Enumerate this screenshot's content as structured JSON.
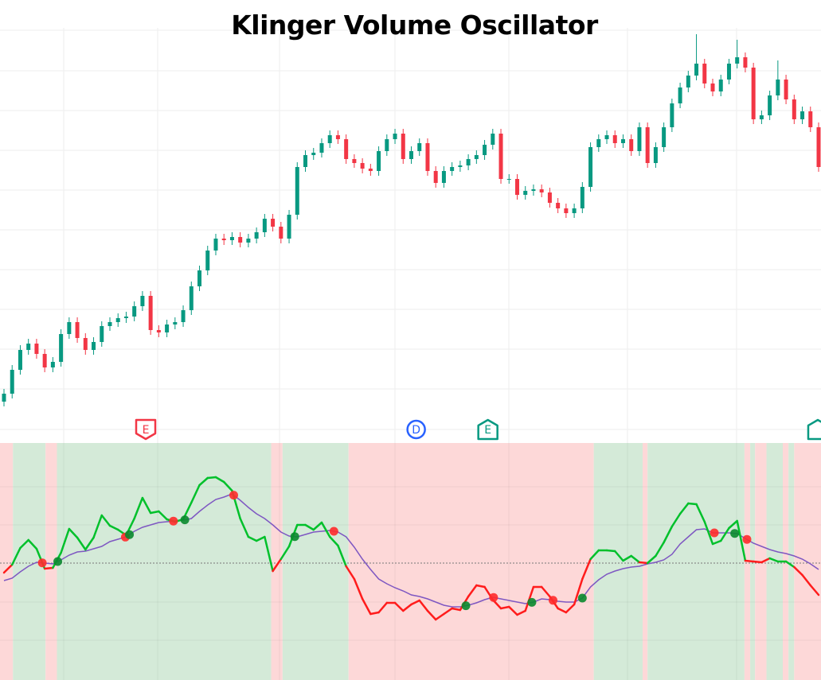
{
  "chart_data": [
    {
      "type": "candlestick",
      "title": "Klinger Volume Oscillator",
      "grid": true,
      "colors": {
        "up": "#089981",
        "down": "#f23645"
      },
      "open": [
        15,
        25,
        55,
        80,
        88,
        75,
        58,
        65,
        100,
        115,
        95,
        80,
        90,
        110,
        115,
        120,
        122,
        135,
        148,
        105,
        102,
        112,
        115,
        130,
        160,
        180,
        205,
        220,
        218,
        222,
        215,
        220,
        228,
        245,
        235,
        220,
        250,
        310,
        325,
        328,
        340,
        350,
        345,
        320,
        315,
        308,
        305,
        330,
        345,
        352,
        320,
        330,
        340,
        305,
        290,
        305,
        310,
        312,
        320,
        325,
        338,
        352,
        295,
        295,
        275,
        280,
        282,
        278,
        265,
        258,
        252,
        258,
        285,
        335,
        345,
        350,
        340,
        345,
        330,
        360,
        315,
        335,
        360,
        390,
        410,
        425,
        440,
        415,
        405,
        420,
        440,
        448,
        435,
        370,
        375,
        400,
        420,
        395,
        370,
        380,
        360
      ],
      "high": [
        31,
        61,
        86,
        94,
        94,
        81,
        71,
        106,
        121,
        121,
        101,
        96,
        116,
        121,
        126,
        128,
        141,
        154,
        154,
        111,
        118,
        121,
        136,
        166,
        186,
        211,
        226,
        226,
        228,
        228,
        226,
        234,
        251,
        251,
        241,
        256,
        316,
        331,
        334,
        346,
        356,
        356,
        351,
        326,
        321,
        314,
        336,
        351,
        358,
        358,
        336,
        346,
        346,
        311,
        311,
        316,
        318,
        326,
        331,
        344,
        358,
        358,
        301,
        301,
        286,
        288,
        288,
        284,
        271,
        264,
        264,
        291,
        341,
        351,
        356,
        356,
        351,
        351,
        366,
        366,
        341,
        366,
        396,
        416,
        431,
        477,
        446,
        421,
        426,
        446,
        470,
        454,
        441,
        381,
        406,
        444,
        426,
        401,
        386,
        386,
        366
      ],
      "low": [
        9,
        19,
        49,
        74,
        69,
        52,
        52,
        59,
        94,
        89,
        74,
        74,
        84,
        104,
        109,
        114,
        116,
        129,
        99,
        96,
        96,
        106,
        109,
        124,
        154,
        174,
        199,
        212,
        212,
        209,
        209,
        214,
        222,
        229,
        214,
        214,
        244,
        304,
        319,
        322,
        334,
        339,
        314,
        309,
        302,
        299,
        299,
        324,
        339,
        314,
        314,
        324,
        299,
        284,
        284,
        299,
        304,
        306,
        314,
        319,
        332,
        289,
        289,
        269,
        269,
        274,
        272,
        259,
        252,
        246,
        246,
        252,
        279,
        329,
        339,
        334,
        334,
        324,
        324,
        309,
        309,
        329,
        354,
        384,
        404,
        419,
        409,
        399,
        399,
        414,
        434,
        429,
        364,
        364,
        369,
        394,
        389,
        364,
        364,
        354,
        304
      ],
      "close": [
        25,
        55,
        80,
        88,
        75,
        58,
        65,
        100,
        115,
        95,
        80,
        90,
        110,
        115,
        120,
        122,
        135,
        148,
        105,
        102,
        112,
        115,
        130,
        160,
        180,
        205,
        220,
        218,
        222,
        215,
        220,
        228,
        245,
        235,
        220,
        250,
        310,
        325,
        328,
        340,
        350,
        345,
        320,
        315,
        308,
        305,
        330,
        345,
        352,
        320,
        330,
        340,
        305,
        290,
        305,
        310,
        312,
        320,
        325,
        338,
        352,
        295,
        295,
        275,
        280,
        282,
        278,
        265,
        258,
        252,
        258,
        285,
        335,
        345,
        350,
        340,
        345,
        330,
        360,
        315,
        335,
        360,
        390,
        410,
        425,
        440,
        415,
        405,
        420,
        440,
        448,
        435,
        370,
        375,
        400,
        420,
        395,
        370,
        380,
        360,
        310
      ],
      "events": [
        {
          "bar": 17.4,
          "label": "E",
          "kind": "earnings",
          "color": "#f23645",
          "shape": "down"
        },
        {
          "bar": 50.6,
          "label": "D",
          "kind": "dividend",
          "color": "#2962ff",
          "shape": "circle"
        },
        {
          "bar": 59.4,
          "label": "E",
          "kind": "earnings",
          "color": "#089981",
          "shape": "up"
        },
        {
          "bar": 99.9,
          "label": "",
          "kind": "earnings",
          "color": "#089981",
          "shape": "up"
        }
      ]
    },
    {
      "type": "line",
      "zero_line": 0,
      "grid": true,
      "colors": {
        "bullish": "#00c02b",
        "bearish": "#ff1c1c",
        "signal": "#7e57c2",
        "bullish_bg": "#d4ead8",
        "bearish_bg": "#fdd8d8",
        "cross_up": "#0a8a2e",
        "cross_down": "#ff2b2b"
      },
      "series": [
        {
          "role": "kvo",
          "values": [
            -12,
            -2,
            19,
            29,
            18,
            -7,
            -6,
            13,
            43,
            32,
            17,
            32,
            60,
            47,
            42,
            35,
            56,
            82,
            63,
            65,
            55,
            52,
            55,
            76,
            98,
            107,
            108,
            102,
            91,
            56,
            33,
            28,
            33,
            -10,
            5,
            21,
            48,
            48,
            42,
            51,
            33,
            22,
            -4,
            -20,
            -45,
            -64,
            -62,
            -50,
            -50,
            -60,
            -52,
            -47,
            -60,
            -71,
            -64,
            -57,
            -59,
            -42,
            -28,
            -30,
            -46,
            -57,
            -55,
            -65,
            -60,
            -30,
            -30,
            -42,
            -57,
            -62,
            -52,
            -20,
            5,
            16,
            16,
            15,
            3,
            9,
            1,
            0,
            9,
            26,
            46,
            62,
            75,
            74,
            52,
            24,
            28,
            44,
            53,
            3,
            2,
            1,
            6,
            2,
            2,
            -5,
            -15,
            -28,
            -40
          ]
        },
        {
          "role": "signal",
          "values": [
            -22,
            -19,
            -11,
            -4,
            1,
            0,
            -1,
            4,
            10,
            14,
            15,
            18,
            21,
            27,
            30,
            33,
            40,
            45,
            48,
            51,
            52,
            53,
            54,
            56,
            65,
            73,
            80,
            83,
            87,
            79,
            70,
            62,
            56,
            48,
            39,
            34,
            33,
            36,
            39,
            40,
            41,
            39,
            33,
            20,
            5,
            -8,
            -20,
            -26,
            -31,
            -35,
            -40,
            -42,
            -45,
            -49,
            -53,
            -55,
            -55,
            -53,
            -50,
            -46,
            -43,
            -45,
            -47,
            -49,
            -51,
            -49,
            -45,
            -46,
            -48,
            -49,
            -49,
            -44,
            -30,
            -21,
            -14,
            -10,
            -7,
            -5,
            -4,
            -1,
            1,
            4,
            11,
            24,
            33,
            42,
            43,
            38,
            38,
            38,
            37,
            31,
            25,
            21,
            17,
            14,
            12,
            9,
            5,
            -1,
            -8
          ]
        }
      ],
      "regions": [
        {
          "from": -0.5,
          "to": 1.1,
          "trend": "bearish"
        },
        {
          "from": 1.1,
          "to": 5.1,
          "trend": "bullish"
        },
        {
          "from": 5.1,
          "to": 6.5,
          "trend": "bearish"
        },
        {
          "from": 6.5,
          "to": 32.8,
          "trend": "bullish"
        },
        {
          "from": 32.8,
          "to": 34.2,
          "trend": "bearish"
        },
        {
          "from": 34.2,
          "to": 42.3,
          "trend": "bullish"
        },
        {
          "from": 42.3,
          "to": 72.4,
          "trend": "bearish"
        },
        {
          "from": 72.4,
          "to": 78.4,
          "trend": "bullish"
        },
        {
          "from": 78.4,
          "to": 79.0,
          "trend": "bearish"
        },
        {
          "from": 79.0,
          "to": 90.9,
          "trend": "bullish"
        },
        {
          "from": 90.9,
          "to": 91.6,
          "trend": "bearish"
        },
        {
          "from": 91.6,
          "to": 92.2,
          "trend": "bullish"
        },
        {
          "from": 92.2,
          "to": 93.6,
          "trend": "bearish"
        },
        {
          "from": 93.6,
          "to": 95.6,
          "trend": "bullish"
        },
        {
          "from": 95.6,
          "to": 96.3,
          "trend": "bearish"
        },
        {
          "from": 96.3,
          "to": 97.0,
          "trend": "bullish"
        },
        {
          "from": 97.0,
          "to": 100.5,
          "trend": "bearish"
        }
      ],
      "crosses_down": [
        4.7,
        14.9,
        20.8,
        28.2,
        40.5,
        60.1,
        67.4,
        87.2,
        91.2
      ],
      "crosses_up": [
        6.6,
        15.4,
        22.2,
        35.7,
        56.7,
        64.8,
        71.0,
        89.7
      ]
    }
  ]
}
